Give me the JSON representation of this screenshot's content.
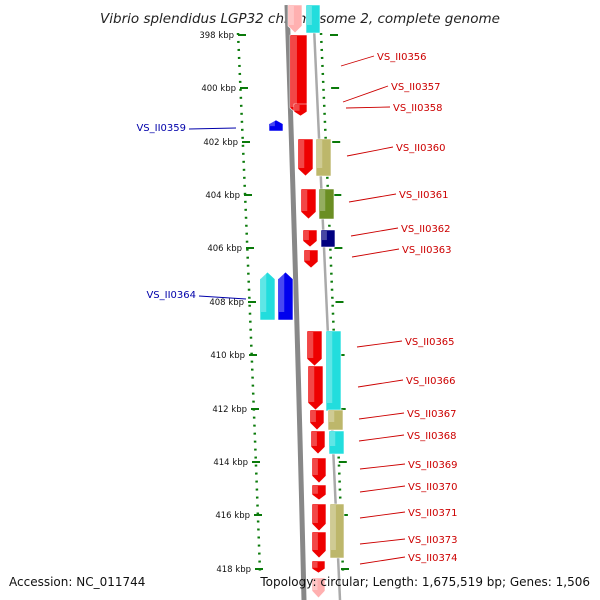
{
  "title": "Vibrio splendidus LGP32 chromosome 2, complete genome",
  "footer": {
    "accession": "Accession: NC_011744",
    "stats": "Topology: circular; Length: 1,675,519 bp; Genes: 1,506"
  },
  "axis": {
    "unit": "kbp",
    "ticks": [
      "398 kbp",
      "400 kbp",
      "402 kbp",
      "404 kbp",
      "406 kbp",
      "408 kbp",
      "410 kbp",
      "412 kbp",
      "414 kbp",
      "416 kbp",
      "418 kbp"
    ]
  },
  "colors": {
    "red": "#ee0000",
    "blue": "#0000ee",
    "navy": "#000080",
    "cyan": "#22dddd",
    "khaki": "#bdb76b",
    "olive": "#6b8e23",
    "pink": "#ffb0b0",
    "label_red": "#cc0000",
    "label_blue": "#0000aa",
    "tick_green": "#0a7a0a",
    "track_gray": "#888888"
  },
  "genes": [
    {
      "label": "VS_II0356",
      "side": "right"
    },
    {
      "label": "VS_II0357",
      "side": "right"
    },
    {
      "label": "VS_II0358",
      "side": "right"
    },
    {
      "label": "VS_II0359",
      "side": "left"
    },
    {
      "label": "VS_II0360",
      "side": "right"
    },
    {
      "label": "VS_II0361",
      "side": "right"
    },
    {
      "label": "VS_II0362",
      "side": "right"
    },
    {
      "label": "VS_II0363",
      "side": "right"
    },
    {
      "label": "VS_II0364",
      "side": "left"
    },
    {
      "label": "VS_II0365",
      "side": "right"
    },
    {
      "label": "VS_II0366",
      "side": "right"
    },
    {
      "label": "VS_II0367",
      "side": "right"
    },
    {
      "label": "VS_II0368",
      "side": "right"
    },
    {
      "label": "VS_II0369",
      "side": "right"
    },
    {
      "label": "VS_II0370",
      "side": "right"
    },
    {
      "label": "VS_II0371",
      "side": "right"
    },
    {
      "label": "VS_II0373",
      "side": "right"
    },
    {
      "label": "VS_II0374",
      "side": "right"
    }
  ]
}
